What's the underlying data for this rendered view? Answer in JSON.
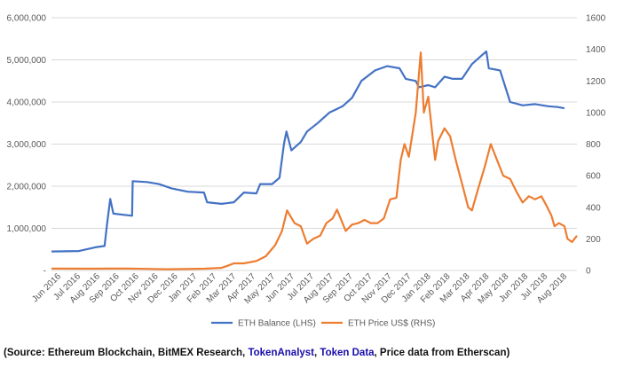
{
  "chart_data": {
    "type": "line",
    "title": "",
    "x": [
      "Jun 2016",
      "Jul 2016",
      "Aug 2016",
      "Sep 2016",
      "Oct 2016",
      "Nov 2016",
      "Dec 2016",
      "Jan 2017",
      "Feb 2017",
      "Mar 2017",
      "Apr 2017",
      "May 2017",
      "Jun 2017",
      "Jul 2017",
      "Aug 2017",
      "Sep 2017",
      "Oct 2017",
      "Nov 2017",
      "Dec 2017",
      "Jan 2018",
      "Feb 2018",
      "Mar 2018",
      "Apr 2018",
      "May 2018",
      "Jun 2018",
      "Jul 2018",
      "Aug 2018"
    ],
    "y_left": {
      "ticks": [
        "-",
        "1,000,000",
        "2,000,000",
        "3,000,000",
        "4,000,000",
        "5,000,000",
        "6,000,000"
      ],
      "ylim": [
        0,
        6000000
      ]
    },
    "y_right": {
      "ticks": [
        "0",
        "200",
        "400",
        "600",
        "800",
        "1000",
        "1200",
        "1400",
        "1600"
      ],
      "ylim": [
        0,
        1600
      ]
    },
    "grid": true,
    "legend_position": "bottom",
    "series": [
      {
        "name": "ETH Balance (LHS)",
        "axis": "left",
        "color": "#4472C4",
        "points": [
          [
            "2016-06-01",
            450000
          ],
          [
            "2016-07-15",
            460000
          ],
          [
            "2016-08-10",
            550000
          ],
          [
            "2016-08-25",
            580000
          ],
          [
            "2016-08-29",
            1100000
          ],
          [
            "2016-09-03",
            1700000
          ],
          [
            "2016-09-08",
            1350000
          ],
          [
            "2016-10-08",
            1300000
          ],
          [
            "2016-10-09",
            2120000
          ],
          [
            "2016-11-01",
            2100000
          ],
          [
            "2016-11-20",
            2050000
          ],
          [
            "2016-12-10",
            1950000
          ],
          [
            "2017-01-05",
            1870000
          ],
          [
            "2017-01-31",
            1850000
          ],
          [
            "2017-02-05",
            1620000
          ],
          [
            "2017-02-28",
            1580000
          ],
          [
            "2017-03-20",
            1620000
          ],
          [
            "2017-04-05",
            1850000
          ],
          [
            "2017-04-25",
            1830000
          ],
          [
            "2017-05-01",
            2050000
          ],
          [
            "2017-05-20",
            2050000
          ],
          [
            "2017-06-01",
            2200000
          ],
          [
            "2017-06-08",
            3000000
          ],
          [
            "2017-06-12",
            3300000
          ],
          [
            "2017-06-20",
            2850000
          ],
          [
            "2017-07-05",
            3050000
          ],
          [
            "2017-07-15",
            3300000
          ],
          [
            "2017-08-01",
            3500000
          ],
          [
            "2017-08-20",
            3750000
          ],
          [
            "2017-09-10",
            3900000
          ],
          [
            "2017-09-25",
            4100000
          ],
          [
            "2017-10-10",
            4500000
          ],
          [
            "2017-11-01",
            4750000
          ],
          [
            "2017-11-20",
            4850000
          ],
          [
            "2017-12-10",
            4800000
          ],
          [
            "2017-12-20",
            4550000
          ],
          [
            "2018-01-05",
            4500000
          ],
          [
            "2018-01-10",
            4350000
          ],
          [
            "2018-01-25",
            4400000
          ],
          [
            "2018-02-05",
            4350000
          ],
          [
            "2018-02-20",
            4600000
          ],
          [
            "2018-03-05",
            4550000
          ],
          [
            "2018-03-20",
            4550000
          ],
          [
            "2018-04-05",
            4900000
          ],
          [
            "2018-04-20",
            5100000
          ],
          [
            "2018-04-28",
            5200000
          ],
          [
            "2018-05-02",
            4800000
          ],
          [
            "2018-05-20",
            4750000
          ],
          [
            "2018-06-05",
            4000000
          ],
          [
            "2018-06-25",
            3920000
          ],
          [
            "2018-07-15",
            3950000
          ],
          [
            "2018-08-05",
            3900000
          ],
          [
            "2018-08-20",
            3880000
          ],
          [
            "2018-08-31",
            3850000
          ]
        ]
      },
      {
        "name": "ETH Price US$ (RHS)",
        "axis": "right",
        "color": "#ED7D31",
        "points": [
          [
            "2016-06-01",
            12
          ],
          [
            "2016-08-01",
            11
          ],
          [
            "2016-09-01",
            12
          ],
          [
            "2016-10-01",
            12
          ],
          [
            "2016-11-01",
            10
          ],
          [
            "2016-12-01",
            8
          ],
          [
            "2017-01-01",
            9
          ],
          [
            "2017-02-01",
            11
          ],
          [
            "2017-02-28",
            16
          ],
          [
            "2017-03-10",
            30
          ],
          [
            "2017-03-20",
            45
          ],
          [
            "2017-04-05",
            45
          ],
          [
            "2017-04-25",
            60
          ],
          [
            "2017-05-10",
            90
          ],
          [
            "2017-05-25",
            160
          ],
          [
            "2017-06-05",
            250
          ],
          [
            "2017-06-13",
            380
          ],
          [
            "2017-06-25",
            300
          ],
          [
            "2017-07-05",
            280
          ],
          [
            "2017-07-15",
            170
          ],
          [
            "2017-07-25",
            200
          ],
          [
            "2017-08-05",
            220
          ],
          [
            "2017-08-15",
            300
          ],
          [
            "2017-08-25",
            330
          ],
          [
            "2017-09-01",
            385
          ],
          [
            "2017-09-15",
            250
          ],
          [
            "2017-09-25",
            290
          ],
          [
            "2017-10-05",
            300
          ],
          [
            "2017-10-15",
            320
          ],
          [
            "2017-10-25",
            300
          ],
          [
            "2017-11-05",
            300
          ],
          [
            "2017-11-15",
            330
          ],
          [
            "2017-11-25",
            450
          ],
          [
            "2017-12-05",
            460
          ],
          [
            "2017-12-12",
            700
          ],
          [
            "2017-12-18",
            800
          ],
          [
            "2017-12-25",
            720
          ],
          [
            "2018-01-05",
            1000
          ],
          [
            "2018-01-13",
            1380
          ],
          [
            "2018-01-18",
            1000
          ],
          [
            "2018-01-25",
            1100
          ],
          [
            "2018-02-05",
            700
          ],
          [
            "2018-02-10",
            820
          ],
          [
            "2018-02-20",
            900
          ],
          [
            "2018-03-01",
            850
          ],
          [
            "2018-03-10",
            700
          ],
          [
            "2018-03-20",
            550
          ],
          [
            "2018-03-30",
            400
          ],
          [
            "2018-04-05",
            380
          ],
          [
            "2018-04-15",
            520
          ],
          [
            "2018-04-25",
            650
          ],
          [
            "2018-05-05",
            800
          ],
          [
            "2018-05-15",
            700
          ],
          [
            "2018-05-25",
            600
          ],
          [
            "2018-06-05",
            580
          ],
          [
            "2018-06-15",
            500
          ],
          [
            "2018-06-25",
            430
          ],
          [
            "2018-07-05",
            470
          ],
          [
            "2018-07-15",
            450
          ],
          [
            "2018-07-25",
            470
          ],
          [
            "2018-08-01",
            420
          ],
          [
            "2018-08-10",
            350
          ],
          [
            "2018-08-15",
            280
          ],
          [
            "2018-08-22",
            300
          ],
          [
            "2018-08-31",
            280
          ],
          [
            "2018-09-05",
            200
          ],
          [
            "2018-09-12",
            180
          ],
          [
            "2018-09-20",
            220
          ]
        ]
      }
    ]
  },
  "source": {
    "prefix": "(Source: Ethereum Blockchain, BitMEX Research, ",
    "link1": "TokenAnalyst",
    "sep": ", ",
    "link2": "Token Data",
    "suffix": ", Price data from Etherscan)"
  }
}
